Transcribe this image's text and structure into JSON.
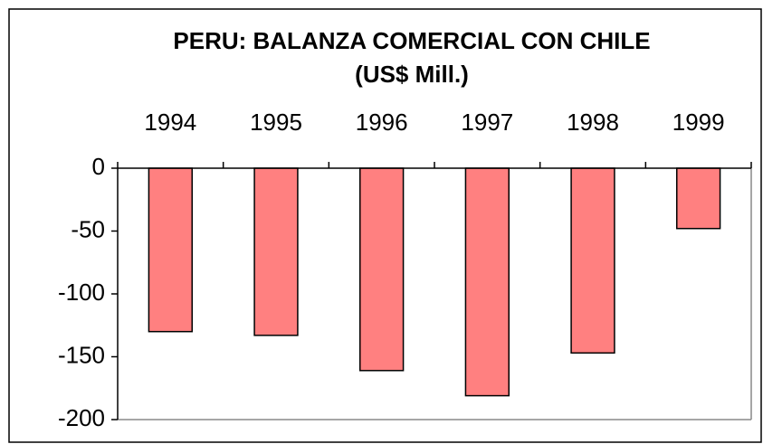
{
  "chart_data": {
    "type": "bar",
    "title": "PERU: BALANZA COMERCIAL CON CHILE",
    "subtitle": "(US$ Mill.)",
    "categories": [
      "1994",
      "1995",
      "1996",
      "1997",
      "1998",
      "1999"
    ],
    "values": [
      -130,
      -133,
      -161,
      -181,
      -147,
      -48
    ],
    "color": "#ff8080",
    "ylim": [
      -200,
      0
    ],
    "yticks": [
      0,
      -50,
      -100,
      -150,
      -200
    ],
    "grid": false
  }
}
